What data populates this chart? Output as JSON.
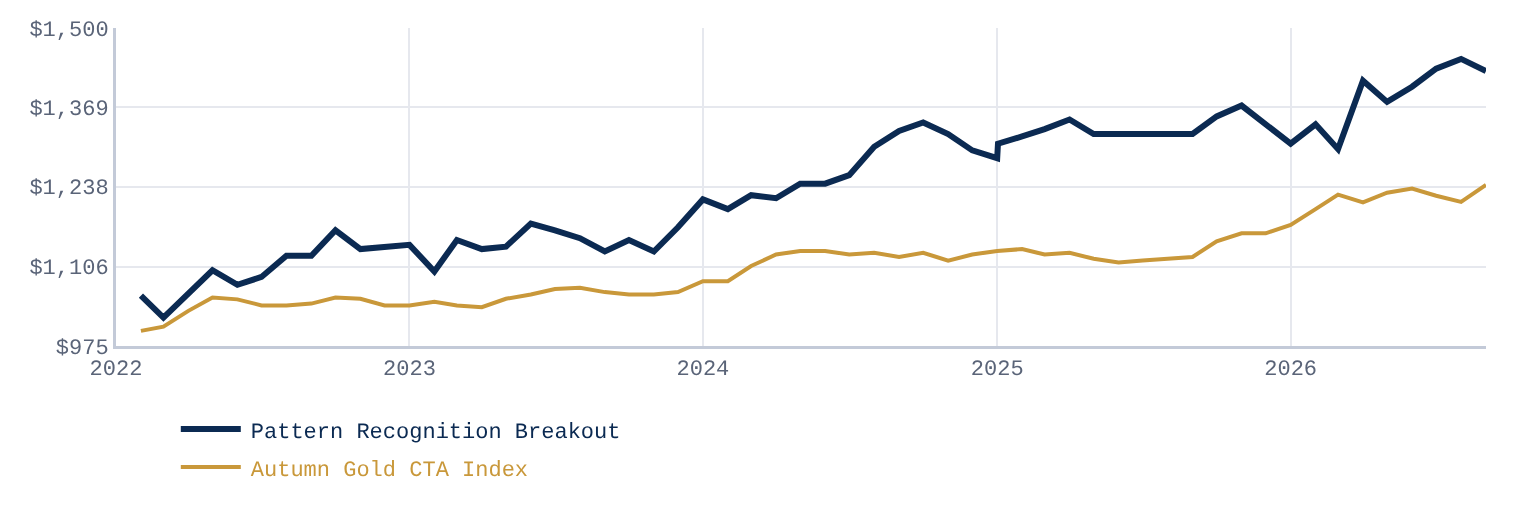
{
  "chart_data": {
    "type": "line",
    "xlim": [
      "2022-01-01",
      "2026-09-01"
    ],
    "ylim": [
      975,
      1500
    ],
    "xticks": [
      {
        "value": "2022-01-01",
        "label": "2022"
      },
      {
        "value": "2023-01-01",
        "label": "2023"
      },
      {
        "value": "2024-01-01",
        "label": "2024"
      },
      {
        "value": "2025-01-01",
        "label": "2025"
      },
      {
        "value": "2026-01-01",
        "label": "2026"
      }
    ],
    "yticks": [
      {
        "value": 975,
        "label": "$975"
      },
      {
        "value": 1106,
        "label": "$1,106"
      },
      {
        "value": 1238,
        "label": "$1,238"
      },
      {
        "value": 1369,
        "label": "$1,369"
      },
      {
        "value": 1500,
        "label": "$1,500"
      }
    ],
    "grid": true,
    "legend": "bottom",
    "line_style": "solid",
    "marker": "none",
    "series": [
      {
        "name": "Pattern Recognition Breakout",
        "color": "#0b2a52",
        "x": [
          "2022-02",
          "2022-03",
          "2022-05",
          "2022-06",
          "2022-07",
          "2022-08",
          "2022-09",
          "2022-10",
          "2022-11",
          "2023-01",
          "2023-02",
          "2023-03",
          "2023-04",
          "2023-05",
          "2023-06",
          "2023-07",
          "2023-08",
          "2023-09",
          "2023-10",
          "2023-11",
          "2023-12",
          "2024-01",
          "2024-02",
          "2024-03",
          "2024-04",
          "2024-05",
          "2024-06",
          "2024-07",
          "2024-08",
          "2024-09",
          "2024-10",
          "2024-11",
          "2024-12",
          "2025-01-01",
          "2025-01-02",
          "2025-02",
          "2025-03",
          "2025-04",
          "2025-05",
          "2025-09",
          "2025-10",
          "2025-11",
          "2026-01",
          "2026-02",
          "2026-03",
          "2026-04",
          "2026-05",
          "2026-06",
          "2026-07",
          "2026-08",
          "2026-09"
        ],
        "values": [
          1058,
          1022,
          1100,
          1076,
          1089,
          1124,
          1124,
          1166,
          1135,
          1142,
          1098,
          1150,
          1135,
          1139,
          1177,
          1166,
          1153,
          1131,
          1150,
          1131,
          1171,
          1217,
          1201,
          1224,
          1219,
          1243,
          1243,
          1257,
          1304,
          1330,
          1344,
          1325,
          1298,
          1285,
          1309,
          1321,
          1333,
          1349,
          1325,
          1325,
          1354,
          1372,
          1309,
          1341,
          1300,
          1413,
          1378,
          1403,
          1433,
          1449,
          1429
        ]
      },
      {
        "name": "Autumn Gold CTA Index",
        "color": "#c9983a",
        "x": [
          "2022-02",
          "2022-03",
          "2022-04",
          "2022-05",
          "2022-06",
          "2022-07",
          "2022-08",
          "2022-09",
          "2022-10",
          "2022-11",
          "2022-12",
          "2023-01",
          "2023-02",
          "2023-03",
          "2023-04",
          "2023-05",
          "2023-06",
          "2023-07",
          "2023-08",
          "2023-09",
          "2023-10",
          "2023-11",
          "2023-12",
          "2024-01",
          "2024-02",
          "2024-03",
          "2024-04",
          "2024-05",
          "2024-06",
          "2024-07",
          "2024-08",
          "2024-09",
          "2024-10",
          "2024-11",
          "2024-12",
          "2025-01",
          "2025-02",
          "2025-03",
          "2025-04",
          "2025-05",
          "2025-06",
          "2025-07",
          "2025-08",
          "2025-09",
          "2025-10",
          "2025-11",
          "2025-12",
          "2026-01",
          "2026-02",
          "2026-03",
          "2026-04",
          "2026-05",
          "2026-06",
          "2026-07",
          "2026-08",
          "2026-09"
        ],
        "values": [
          1000,
          1007,
          1033,
          1055,
          1052,
          1042,
          1042,
          1045,
          1055,
          1053,
          1042,
          1042,
          1048,
          1042,
          1039,
          1053,
          1060,
          1069,
          1071,
          1064,
          1060,
          1060,
          1064,
          1082,
          1082,
          1107,
          1126,
          1132,
          1132,
          1126,
          1129,
          1122,
          1129,
          1116,
          1126,
          1132,
          1135,
          1126,
          1129,
          1119,
          1113,
          1116,
          1119,
          1122,
          1148,
          1161,
          1161,
          1175,
          1201,
          1225,
          1212,
          1228,
          1235,
          1223,
          1213,
          1241
        ]
      }
    ]
  }
}
